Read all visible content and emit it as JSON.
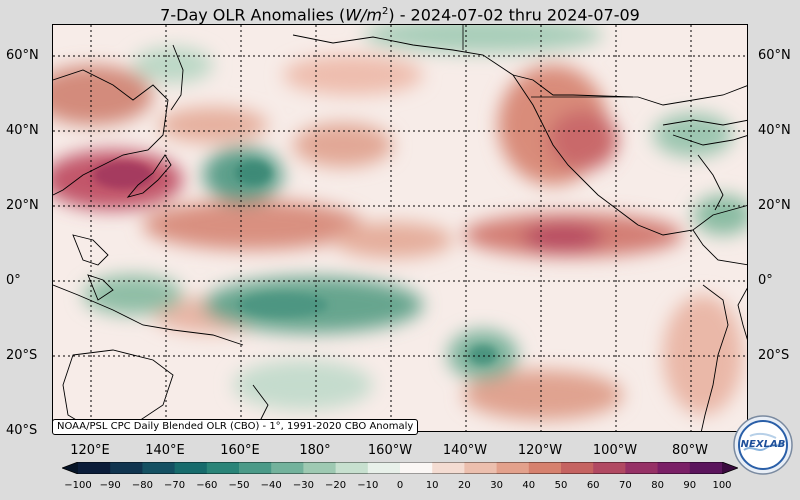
{
  "title": {
    "prefix": "7-Day OLR Anomalies (",
    "unit_base": "W/m",
    "unit_exp": "2",
    "suffix": ") - 2024-07-02 thru 2024-07-09"
  },
  "lat_labels": [
    "60°N",
    "40°N",
    "20°N",
    "0°",
    "20°S",
    "40°S"
  ],
  "lon_labels": [
    "120°E",
    "140°E",
    "160°E",
    "180°",
    "160°W",
    "140°W",
    "120°W",
    "100°W",
    "80°W"
  ],
  "source_note": "NOAA/PSL CPC Daily Blended OLR (CBO) - 1°, 1991-2020 CBO Anomaly",
  "colorbar": {
    "ticks": [
      "−100",
      "−90",
      "−80",
      "−70",
      "−60",
      "−50",
      "−40",
      "−30",
      "−20",
      "−10",
      "0",
      "10",
      "20",
      "30",
      "40",
      "50",
      "60",
      "70",
      "80",
      "90",
      "100"
    ],
    "colors": [
      "#0b1d3a",
      "#10344f",
      "#145062",
      "#176b6c",
      "#2a8478",
      "#4b9a88",
      "#73b29c",
      "#9ec9b2",
      "#c7e0cf",
      "#e8f1ea",
      "#fbf7f5",
      "#f4dcd2",
      "#ecbfae",
      "#e3a18c",
      "#d6816e",
      "#c56361",
      "#b14962",
      "#963166",
      "#7a1f66",
      "#5a145c"
    ],
    "range": [
      -100,
      100
    ]
  },
  "logo": {
    "text": "NEXLAB"
  }
}
